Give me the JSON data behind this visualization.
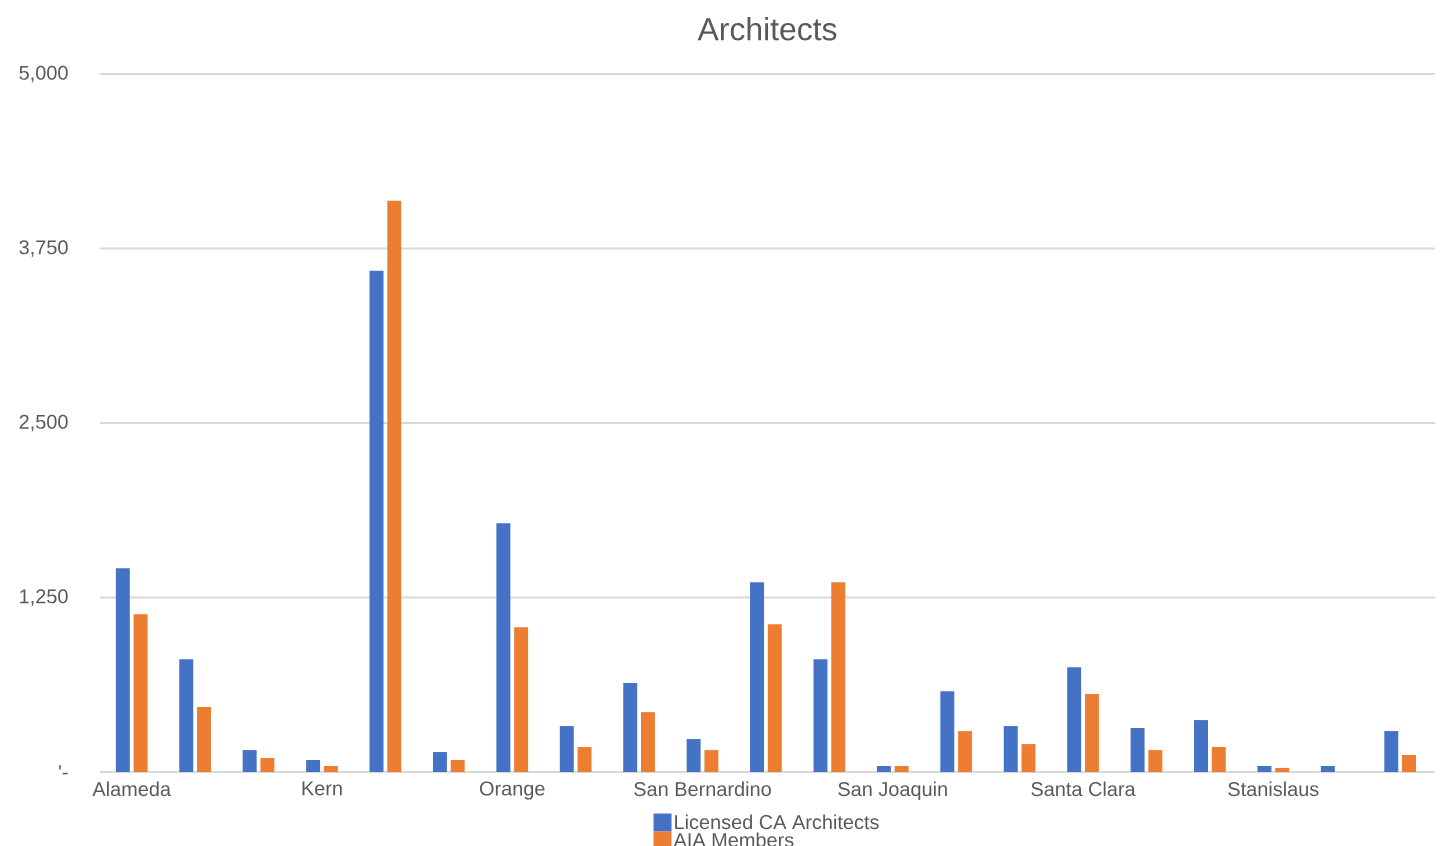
{
  "chart_data": {
    "type": "bar",
    "title": "Architects",
    "categories": [
      "Alameda",
      null,
      null,
      "Kern",
      null,
      null,
      "Orange",
      null,
      null,
      "San Bernardino",
      null,
      null,
      "San Joaquin",
      null,
      null,
      "Santa Clara",
      null,
      null,
      "Stanislaus",
      null,
      null
    ],
    "series": [
      {
        "name": "Licensed CA Architects",
        "color": "#4472c4",
        "values": [
          1459,
          808,
          157,
          86,
          3590,
          143,
          1781,
          329,
          637,
          236,
          1359,
          808,
          43,
          579,
          329,
          751,
          315,
          372,
          43,
          43,
          293
        ]
      },
      {
        "name": "AIA Members",
        "color": "#ed7d31",
        "values": [
          1130,
          465,
          100,
          43,
          4092,
          86,
          1037,
          179,
          429,
          157,
          1059,
          1359,
          43,
          293,
          200,
          558,
          157,
          179,
          29,
          0,
          122
        ]
      }
    ],
    "ylim": [
      0,
      5000
    ],
    "yticks": [
      {
        "value": 0,
        "label": "'-"
      },
      {
        "value": 1250,
        "label": "1,250"
      },
      {
        "value": 2500,
        "label": "2,500"
      },
      {
        "value": 3750,
        "label": "3,750"
      },
      {
        "value": 5000,
        "label": "5,000"
      }
    ],
    "grid": "y",
    "legend": "bottom"
  }
}
